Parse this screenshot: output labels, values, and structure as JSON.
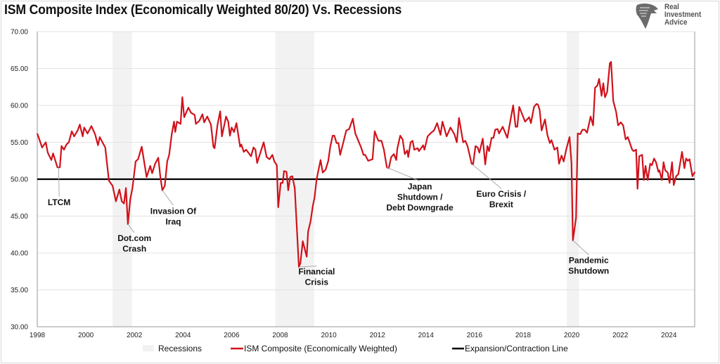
{
  "title": "ISM Composite Index (Economically Weighted 80/20) Vs. Recessions",
  "logo": {
    "text": "Real Investment Advice",
    "lines": [
      "Real",
      "Investment",
      "Advice"
    ],
    "icon": "eagle-head-icon"
  },
  "chart_data": {
    "type": "line",
    "title": "ISM Composite Index (Economically Weighted 80/20) Vs. Recessions",
    "xlabel": "",
    "ylabel": "",
    "xlim": [
      1998,
      2025.1
    ],
    "ylim": [
      30,
      70
    ],
    "x_ticks": [
      "1998",
      "2000",
      "2002",
      "2004",
      "2006",
      "2008",
      "2010",
      "2012",
      "2014",
      "2016",
      "2018",
      "2020",
      "2022",
      "2024"
    ],
    "y_ticks": [
      "30.00",
      "35.00",
      "40.00",
      "45.00",
      "50.00",
      "55.00",
      "60.00",
      "65.00",
      "70.00"
    ],
    "grid": true,
    "legend_position": "bottom",
    "legend": [
      "Recessions",
      "ISM Composite (Economically Weighted)",
      "Expansion/Contraction Line"
    ],
    "colors": {
      "ism": "#d0121b",
      "line50": "#000000",
      "recession": "#f2f2f2",
      "grid": "#e3e3e3"
    },
    "recessions": [
      [
        2001.1,
        2001.9
      ],
      [
        2007.8,
        2009.4
      ],
      [
        2019.8,
        2020.3
      ]
    ],
    "reference_line": {
      "name": "Expansion/Contraction Line",
      "value": 50
    },
    "series": [
      {
        "name": "ISM Composite (Economically Weighted)",
        "points": [
          [
            1998.0,
            56.2
          ],
          [
            1998.2,
            54.3
          ],
          [
            1998.35,
            55
          ],
          [
            1998.43,
            53.6
          ],
          [
            1998.58,
            52.6
          ],
          [
            1998.65,
            53.5
          ],
          [
            1998.83,
            51.6
          ],
          [
            1998.93,
            51.6
          ],
          [
            1999.0,
            54.5
          ],
          [
            1999.1,
            54
          ],
          [
            1999.2,
            54.7
          ],
          [
            1999.3,
            55
          ],
          [
            1999.42,
            56.5
          ],
          [
            1999.52,
            55.8
          ],
          [
            1999.66,
            56.6
          ],
          [
            1999.75,
            57.4
          ],
          [
            1999.87,
            55.8
          ],
          [
            1999.93,
            57
          ],
          [
            2000.07,
            56.2
          ],
          [
            2000.23,
            57.2
          ],
          [
            2000.38,
            56.1
          ],
          [
            2000.5,
            54.6
          ],
          [
            2000.57,
            55.7
          ],
          [
            2000.8,
            54.3
          ],
          [
            2000.95,
            49.8
          ],
          [
            2001.1,
            49.1
          ],
          [
            2001.24,
            47
          ],
          [
            2001.38,
            48.6
          ],
          [
            2001.48,
            47
          ],
          [
            2001.57,
            46.7
          ],
          [
            2001.65,
            48.8
          ],
          [
            2001.73,
            43.9
          ],
          [
            2001.83,
            47.3
          ],
          [
            2001.92,
            48.8
          ],
          [
            2002.05,
            52.4
          ],
          [
            2002.15,
            52.7
          ],
          [
            2002.3,
            54.4
          ],
          [
            2002.5,
            50.3
          ],
          [
            2002.65,
            51.8
          ],
          [
            2002.73,
            50.8
          ],
          [
            2002.85,
            52.1
          ],
          [
            2002.98,
            52.9
          ],
          [
            2003.07,
            50.2
          ],
          [
            2003.15,
            48.5
          ],
          [
            2003.25,
            49.1
          ],
          [
            2003.35,
            52.4
          ],
          [
            2003.43,
            53.3
          ],
          [
            2003.53,
            56
          ],
          [
            2003.63,
            57.8
          ],
          [
            2003.68,
            56.4
          ],
          [
            2003.75,
            57.8
          ],
          [
            2003.9,
            57.5
          ],
          [
            2003.97,
            61.1
          ],
          [
            2004.05,
            58.4
          ],
          [
            2004.22,
            59.7
          ],
          [
            2004.33,
            59
          ],
          [
            2004.48,
            58.7
          ],
          [
            2004.53,
            57.5
          ],
          [
            2004.67,
            57.9
          ],
          [
            2004.8,
            58.8
          ],
          [
            2004.87,
            57.7
          ],
          [
            2005.0,
            58.5
          ],
          [
            2005.15,
            57.4
          ],
          [
            2005.25,
            54.4
          ],
          [
            2005.3,
            54.2
          ],
          [
            2005.42,
            57.4
          ],
          [
            2005.53,
            59.2
          ],
          [
            2005.6,
            55.8
          ],
          [
            2005.77,
            58.5
          ],
          [
            2005.86,
            57.8
          ],
          [
            2005.93,
            55.9
          ],
          [
            2006.0,
            57
          ],
          [
            2006.1,
            56.4
          ],
          [
            2006.2,
            57.6
          ],
          [
            2006.35,
            54.4
          ],
          [
            2006.4,
            54.7
          ],
          [
            2006.5,
            53.7
          ],
          [
            2006.6,
            54
          ],
          [
            2006.8,
            53.1
          ],
          [
            2006.9,
            54.3
          ],
          [
            2006.98,
            54
          ],
          [
            2007.05,
            52.2
          ],
          [
            2007.32,
            55
          ],
          [
            2007.44,
            53
          ],
          [
            2007.56,
            52.7
          ],
          [
            2007.68,
            53.3
          ],
          [
            2007.76,
            52.4
          ],
          [
            2007.86,
            51.9
          ],
          [
            2007.92,
            46.2
          ],
          [
            2008.02,
            49.5
          ],
          [
            2008.1,
            49.5
          ],
          [
            2008.16,
            51.1
          ],
          [
            2008.26,
            51
          ],
          [
            2008.33,
            48.5
          ],
          [
            2008.41,
            50.3
          ],
          [
            2008.5,
            50.4
          ],
          [
            2008.6,
            48.8
          ],
          [
            2008.77,
            38.1
          ],
          [
            2008.83,
            38.6
          ],
          [
            2008.93,
            41.6
          ],
          [
            2009.09,
            39.5
          ],
          [
            2009.15,
            42.9
          ],
          [
            2009.25,
            44.3
          ],
          [
            2009.35,
            46.5
          ],
          [
            2009.41,
            47.4
          ],
          [
            2009.5,
            50
          ],
          [
            2009.66,
            52.6
          ],
          [
            2009.75,
            50.9
          ],
          [
            2009.87,
            51.3
          ],
          [
            2009.98,
            52.5
          ],
          [
            2010.06,
            54.4
          ],
          [
            2010.16,
            55.9
          ],
          [
            2010.23,
            55.9
          ],
          [
            2010.32,
            54.9
          ],
          [
            2010.4,
            54.9
          ],
          [
            2010.47,
            53.3
          ],
          [
            2010.6,
            55
          ],
          [
            2010.72,
            56.6
          ],
          [
            2010.84,
            56.8
          ],
          [
            2010.99,
            58.2
          ],
          [
            2011.09,
            56.2
          ],
          [
            2011.23,
            55.1
          ],
          [
            2011.33,
            54.3
          ],
          [
            2011.43,
            53.3
          ],
          [
            2011.5,
            53.3
          ],
          [
            2011.62,
            52.5
          ],
          [
            2011.8,
            52.7
          ],
          [
            2011.89,
            56.5
          ],
          [
            2011.99,
            55.6
          ],
          [
            2012.05,
            55.2
          ],
          [
            2012.17,
            55.2
          ],
          [
            2012.27,
            54
          ],
          [
            2012.39,
            51.6
          ],
          [
            2012.47,
            51.5
          ],
          [
            2012.57,
            53
          ],
          [
            2012.68,
            53.4
          ],
          [
            2012.78,
            52.6
          ],
          [
            2012.82,
            54.1
          ],
          [
            2012.94,
            55.9
          ],
          [
            2013.04,
            55.4
          ],
          [
            2013.13,
            53.4
          ],
          [
            2013.23,
            53.9
          ],
          [
            2013.27,
            53
          ],
          [
            2013.37,
            55
          ],
          [
            2013.45,
            55.2
          ],
          [
            2013.52,
            54
          ],
          [
            2013.66,
            54.2
          ],
          [
            2013.71,
            53.8
          ],
          [
            2013.88,
            54.6
          ],
          [
            2013.94,
            54
          ],
          [
            2014.07,
            55.8
          ],
          [
            2014.21,
            56.3
          ],
          [
            2014.33,
            56.6
          ],
          [
            2014.46,
            57.6
          ],
          [
            2014.6,
            56
          ],
          [
            2014.68,
            57.8
          ],
          [
            2014.85,
            55.8
          ],
          [
            2015.01,
            57
          ],
          [
            2015.17,
            56.1
          ],
          [
            2015.27,
            55
          ],
          [
            2015.36,
            58.3
          ],
          [
            2015.53,
            55
          ],
          [
            2015.62,
            55.2
          ],
          [
            2015.71,
            54.5
          ],
          [
            2015.88,
            52.1
          ],
          [
            2015.94,
            52
          ],
          [
            2016.04,
            54.5
          ],
          [
            2016.13,
            54.3
          ],
          [
            2016.2,
            53.6
          ],
          [
            2016.34,
            55.5
          ],
          [
            2016.44,
            52
          ],
          [
            2016.53,
            54.5
          ],
          [
            2016.6,
            53.8
          ],
          [
            2016.7,
            55.6
          ],
          [
            2016.78,
            55.6
          ],
          [
            2016.85,
            56.7
          ],
          [
            2016.95,
            56.8
          ],
          [
            2017.01,
            56.2
          ],
          [
            2017.16,
            57.1
          ],
          [
            2017.35,
            55.6
          ],
          [
            2017.59,
            60
          ],
          [
            2017.69,
            57.1
          ],
          [
            2017.76,
            57.1
          ],
          [
            2017.84,
            59.8
          ],
          [
            2018.08,
            57.8
          ],
          [
            2018.25,
            58.4
          ],
          [
            2018.32,
            57.6
          ],
          [
            2018.45,
            59.8
          ],
          [
            2018.55,
            60.2
          ],
          [
            2018.61,
            60.1
          ],
          [
            2018.68,
            59.4
          ],
          [
            2018.76,
            56.6
          ],
          [
            2018.9,
            58.1
          ],
          [
            2019.0,
            56
          ],
          [
            2019.1,
            54.9
          ],
          [
            2019.17,
            55.3
          ],
          [
            2019.29,
            54
          ],
          [
            2019.41,
            54.3
          ],
          [
            2019.48,
            52.1
          ],
          [
            2019.58,
            53.2
          ],
          [
            2019.67,
            52.4
          ],
          [
            2019.77,
            54
          ],
          [
            2019.91,
            55.7
          ],
          [
            2019.99,
            52.2
          ],
          [
            2020.05,
            41.7
          ],
          [
            2020.18,
            44.8
          ],
          [
            2020.25,
            56.2
          ],
          [
            2020.35,
            56.1
          ],
          [
            2020.44,
            56.7
          ],
          [
            2020.54,
            56.7
          ],
          [
            2020.63,
            56.3
          ],
          [
            2020.78,
            58.5
          ],
          [
            2020.88,
            57.3
          ],
          [
            2020.96,
            62.4
          ],
          [
            2021.06,
            62.7
          ],
          [
            2021.13,
            63.6
          ],
          [
            2021.23,
            61.3
          ],
          [
            2021.3,
            63
          ],
          [
            2021.37,
            61.1
          ],
          [
            2021.46,
            61.8
          ],
          [
            2021.57,
            65.7
          ],
          [
            2021.62,
            65.9
          ],
          [
            2021.71,
            60.6
          ],
          [
            2021.83,
            59.1
          ],
          [
            2021.91,
            57.3
          ],
          [
            2022.02,
            57.7
          ],
          [
            2022.12,
            57.3
          ],
          [
            2022.22,
            55.4
          ],
          [
            2022.31,
            55.7
          ],
          [
            2022.49,
            54
          ],
          [
            2022.55,
            53.8
          ],
          [
            2022.65,
            54
          ],
          [
            2022.71,
            48.7
          ],
          [
            2022.78,
            53.1
          ],
          [
            2022.9,
            53.3
          ],
          [
            2022.97,
            49.9
          ],
          [
            2023.04,
            51.8
          ],
          [
            2023.13,
            49.9
          ],
          [
            2023.23,
            52.1
          ],
          [
            2023.3,
            51.9
          ],
          [
            2023.39,
            52.8
          ],
          [
            2023.47,
            52.3
          ],
          [
            2023.57,
            51
          ],
          [
            2023.61,
            51.2
          ],
          [
            2023.71,
            49.9
          ],
          [
            2023.78,
            52.3
          ],
          [
            2023.85,
            51.2
          ],
          [
            2023.95,
            50.9
          ],
          [
            2024.03,
            49.5
          ],
          [
            2024.13,
            52.3
          ],
          [
            2024.2,
            49.2
          ],
          [
            2024.3,
            50.4
          ],
          [
            2024.39,
            50.7
          ],
          [
            2024.54,
            53.7
          ],
          [
            2024.64,
            51.5
          ],
          [
            2024.71,
            52.8
          ],
          [
            2024.78,
            52.5
          ],
          [
            2024.85,
            52.7
          ],
          [
            2024.97,
            50.4
          ],
          [
            2025.07,
            51
          ]
        ]
      }
    ],
    "annotations": [
      {
        "lines": [
          "LTCM"
        ],
        "point": [
          1998.88,
          51.6
        ],
        "label_at": [
          1998.9,
          46.5
        ]
      },
      {
        "lines": [
          "Dot.com",
          "Crash"
        ],
        "point": [
          2001.73,
          43.9
        ],
        "label_at": [
          2002.0,
          41.6
        ]
      },
      {
        "lines": [
          "Invasion Of",
          "Iraq"
        ],
        "point": [
          2003.15,
          48.5
        ],
        "label_at": [
          2003.6,
          45.3
        ]
      },
      {
        "lines": [
          "Financial",
          "Crisis"
        ],
        "point": [
          2008.77,
          38.1
        ],
        "label_at": [
          2009.5,
          37.1
        ]
      },
      {
        "lines": [
          "Japan",
          "Shutdown /",
          "Debt Downgrade"
        ],
        "point": [
          2012.39,
          51.6
        ],
        "label_at": [
          2013.75,
          48.6
        ]
      },
      {
        "lines": [
          "Euro Crisis /",
          "Brexit"
        ],
        "point": [
          2015.91,
          52.0
        ],
        "label_at": [
          2017.1,
          47.6
        ]
      },
      {
        "lines": [
          "Pandemic",
          "Shutdown"
        ],
        "point": [
          2020.05,
          41.7
        ],
        "label_at": [
          2020.7,
          38.6
        ]
      }
    ]
  }
}
